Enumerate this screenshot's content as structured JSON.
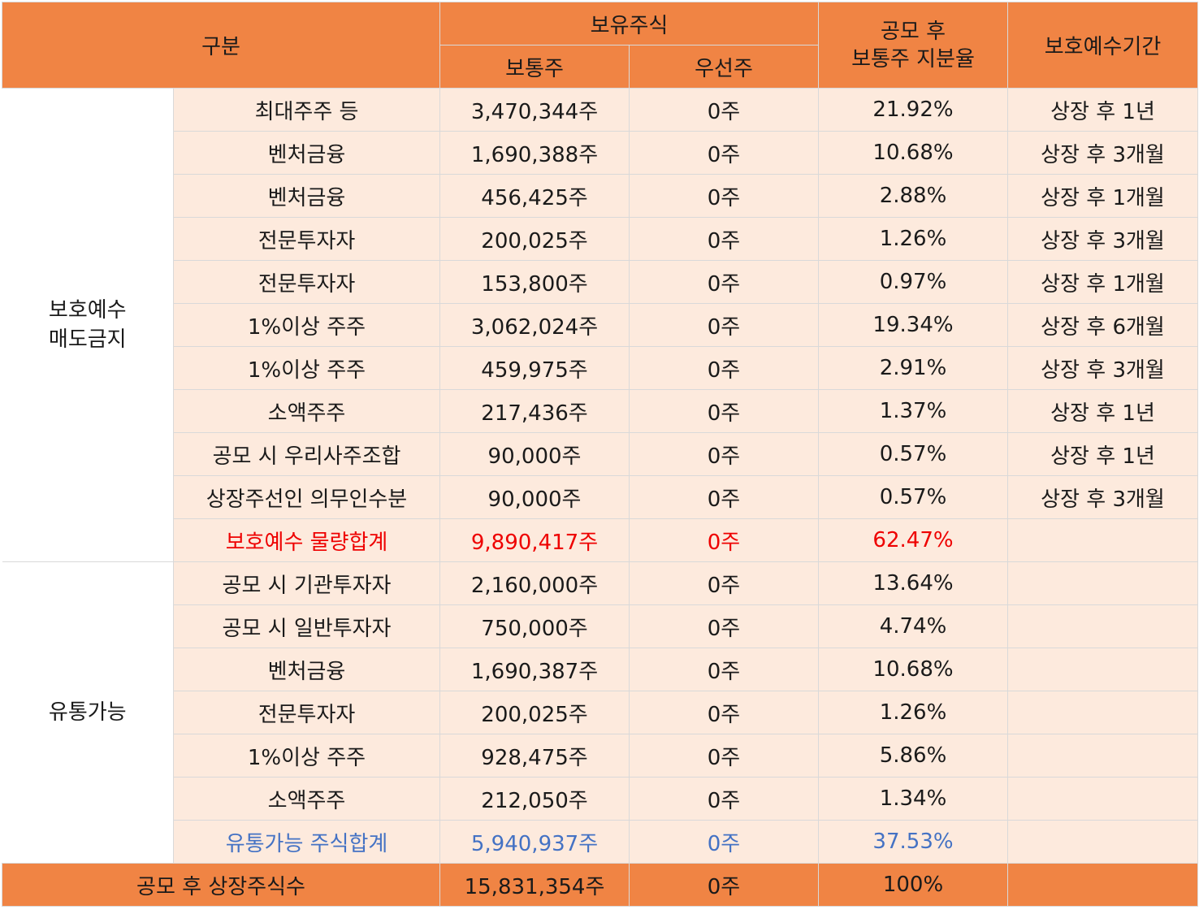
{
  "header": {
    "category": "구분",
    "holdings": "보유주식",
    "common": "보통주",
    "preferred": "우선주",
    "ratio_line1": "공모 후",
    "ratio_line2": "보통주 지분율",
    "lockup_period": "보호예수기간"
  },
  "groups": {
    "locked_line1": "보호예수",
    "locked_line2": "매도금지",
    "tradable": "유통가능"
  },
  "locked_rows": [
    {
      "name": "최대주주 등",
      "common": "3,470,344주",
      "preferred": "0주",
      "ratio": "21.92%",
      "period": "상장 후 1년"
    },
    {
      "name": "벤처금융",
      "common": "1,690,388주",
      "preferred": "0주",
      "ratio": "10.68%",
      "period": "상장 후 3개월"
    },
    {
      "name": "벤처금융",
      "common": "456,425주",
      "preferred": "0주",
      "ratio": "2.88%",
      "period": "상장 후 1개월"
    },
    {
      "name": "전문투자자",
      "common": "200,025주",
      "preferred": "0주",
      "ratio": "1.26%",
      "period": "상장 후 3개월"
    },
    {
      "name": "전문투자자",
      "common": "153,800주",
      "preferred": "0주",
      "ratio": "0.97%",
      "period": "상장 후 1개월"
    },
    {
      "name": "1%이상 주주",
      "common": "3,062,024주",
      "preferred": "0주",
      "ratio": "19.34%",
      "period": "상장 후 6개월"
    },
    {
      "name": "1%이상 주주",
      "common": "459,975주",
      "preferred": "0주",
      "ratio": "2.91%",
      "period": "상장 후 3개월"
    },
    {
      "name": "소액주주",
      "common": "217,436주",
      "preferred": "0주",
      "ratio": "1.37%",
      "period": "상장 후 1년"
    },
    {
      "name": "공모 시 우리사주조합",
      "common": "90,000주",
      "preferred": "0주",
      "ratio": "0.57%",
      "period": "상장 후 1년"
    },
    {
      "name": "상장주선인 의무인수분",
      "common": "90,000주",
      "preferred": "0주",
      "ratio": "0.57%",
      "period": "상장 후 3개월"
    }
  ],
  "locked_total": {
    "name": "보호예수 물량합계",
    "common": "9,890,417주",
    "preferred": "0주",
    "ratio": "62.47%",
    "period": ""
  },
  "tradable_rows": [
    {
      "name": "공모 시 기관투자자",
      "common": "2,160,000주",
      "preferred": "0주",
      "ratio": "13.64%",
      "period": ""
    },
    {
      "name": "공모 시 일반투자자",
      "common": "750,000주",
      "preferred": "0주",
      "ratio": "4.74%",
      "period": ""
    },
    {
      "name": "벤처금융",
      "common": "1,690,387주",
      "preferred": "0주",
      "ratio": "10.68%",
      "period": ""
    },
    {
      "name": "전문투자자",
      "common": "200,025주",
      "preferred": "0주",
      "ratio": "1.26%",
      "period": ""
    },
    {
      "name": "1%이상 주주",
      "common": "928,475주",
      "preferred": "0주",
      "ratio": "5.86%",
      "period": ""
    },
    {
      "name": "소액주주",
      "common": "212,050주",
      "preferred": "0주",
      "ratio": "1.34%",
      "period": ""
    }
  ],
  "tradable_total": {
    "name": "유통가능 주식합계",
    "common": "5,940,937주",
    "preferred": "0주",
    "ratio": "37.53%",
    "period": ""
  },
  "grand_total": {
    "name": "공모 후 상장주식수",
    "common": "15,831,354주",
    "preferred": "0주",
    "ratio": "100%",
    "period": ""
  },
  "colors": {
    "header_orange": "#f08444",
    "row_peach": "#fdeadd",
    "locked_total": "#ee0000",
    "tradable_total": "#4472c4"
  }
}
